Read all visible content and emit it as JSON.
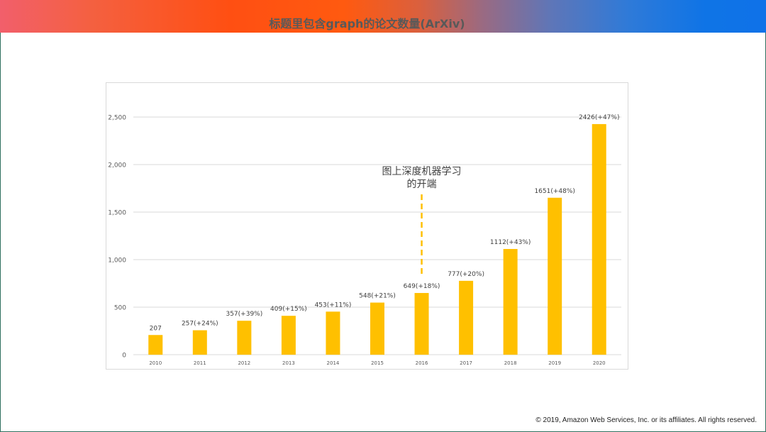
{
  "colors": {
    "bar": "#ffc000",
    "grid": "#d9d9d9",
    "axis_text": "#595959",
    "annotation": "#404040"
  },
  "chart_data": {
    "type": "bar",
    "title": "标题里包含graph的论文数量(ArXiv)",
    "categories": [
      "2010",
      "2011",
      "2012",
      "2013",
      "2014",
      "2015",
      "2016",
      "2017",
      "2018",
      "2019",
      "2020"
    ],
    "values": [
      207,
      257,
      357,
      409,
      453,
      548,
      649,
      777,
      1112,
      1651,
      2426
    ],
    "data_labels": [
      "207",
      "257(+24%)",
      "357(+39%)",
      "409(+15%)",
      "453(+11%)",
      "548(+21%)",
      "649(+18%)",
      "777(+20%)",
      "1112(+43%)",
      "1651(+48%)",
      "2426(+47%)"
    ],
    "ylim": [
      0,
      2500
    ],
    "yticks": [
      0,
      500,
      1000,
      1500,
      2000,
      2500
    ],
    "ytick_labels": [
      "0",
      "500",
      "1,000",
      "1,500",
      "2,000",
      "2,500"
    ],
    "xlabel": "",
    "ylabel": "",
    "grid": true,
    "annotation": {
      "lines": [
        "图上深度机器学习",
        "的开端"
      ],
      "category": "2016"
    }
  },
  "footer": {
    "text": "© 2019, Amazon Web Services, Inc. or its affiliates. All rights reserved."
  }
}
